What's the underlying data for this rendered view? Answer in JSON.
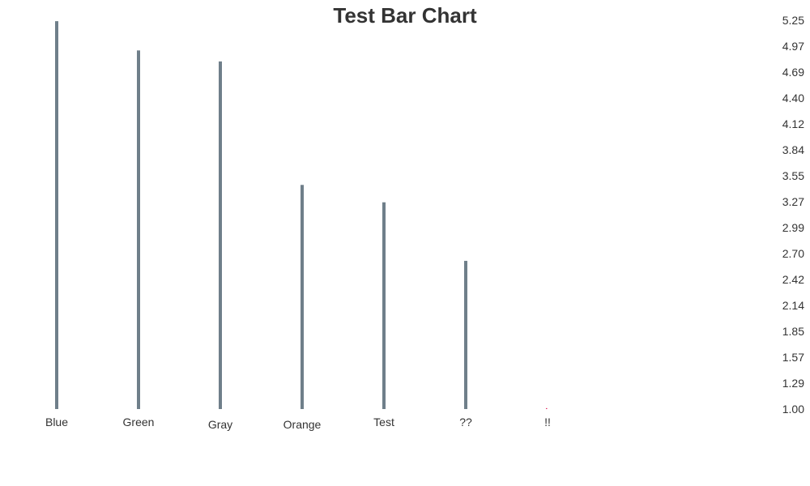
{
  "colors": {
    "bar": "#6f7f8a",
    "tiny_bar": "#e0245e",
    "text": "#333333"
  },
  "chart_data": {
    "type": "bar",
    "title": "Test Bar Chart",
    "xlabel": "",
    "ylabel": "",
    "categories": [
      "Blue",
      "Green",
      "Gray",
      "Orange",
      "Test",
      "??",
      "!!"
    ],
    "values": [
      5.24,
      4.92,
      4.8,
      3.45,
      3.26,
      2.62,
      1.01
    ],
    "ylim": [
      1.0,
      5.25
    ],
    "y_ticks": [
      "5.25",
      "4.97",
      "4.69",
      "4.40",
      "4.12",
      "3.84",
      "3.55",
      "3.27",
      "2.99",
      "2.70",
      "2.42",
      "2.14",
      "1.85",
      "1.57",
      "1.29",
      "1.00"
    ],
    "y_axis_position": "right",
    "grid": false,
    "legend": "none"
  }
}
